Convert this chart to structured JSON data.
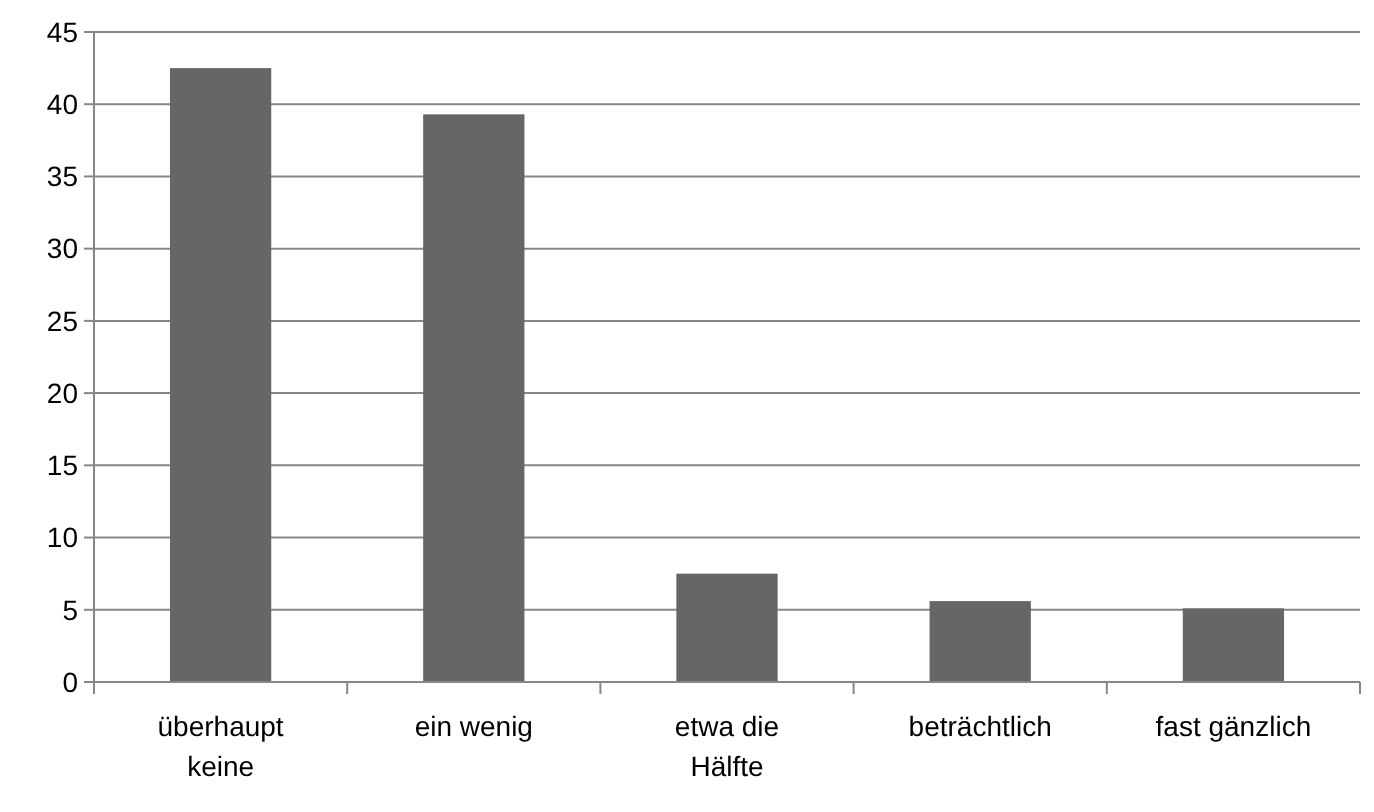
{
  "chart_data": {
    "type": "bar",
    "categories": [
      "überhaupt keine",
      "ein wenig",
      "etwa die Hälfte",
      "beträchtlich",
      "fast gänzlich"
    ],
    "values": [
      42.5,
      39.3,
      7.5,
      5.6,
      5.1
    ],
    "color": "#666666",
    "ylim": [
      0,
      45
    ],
    "yticks": [
      0,
      5,
      10,
      15,
      20,
      25,
      30,
      35,
      40,
      45
    ],
    "grid": "y"
  }
}
